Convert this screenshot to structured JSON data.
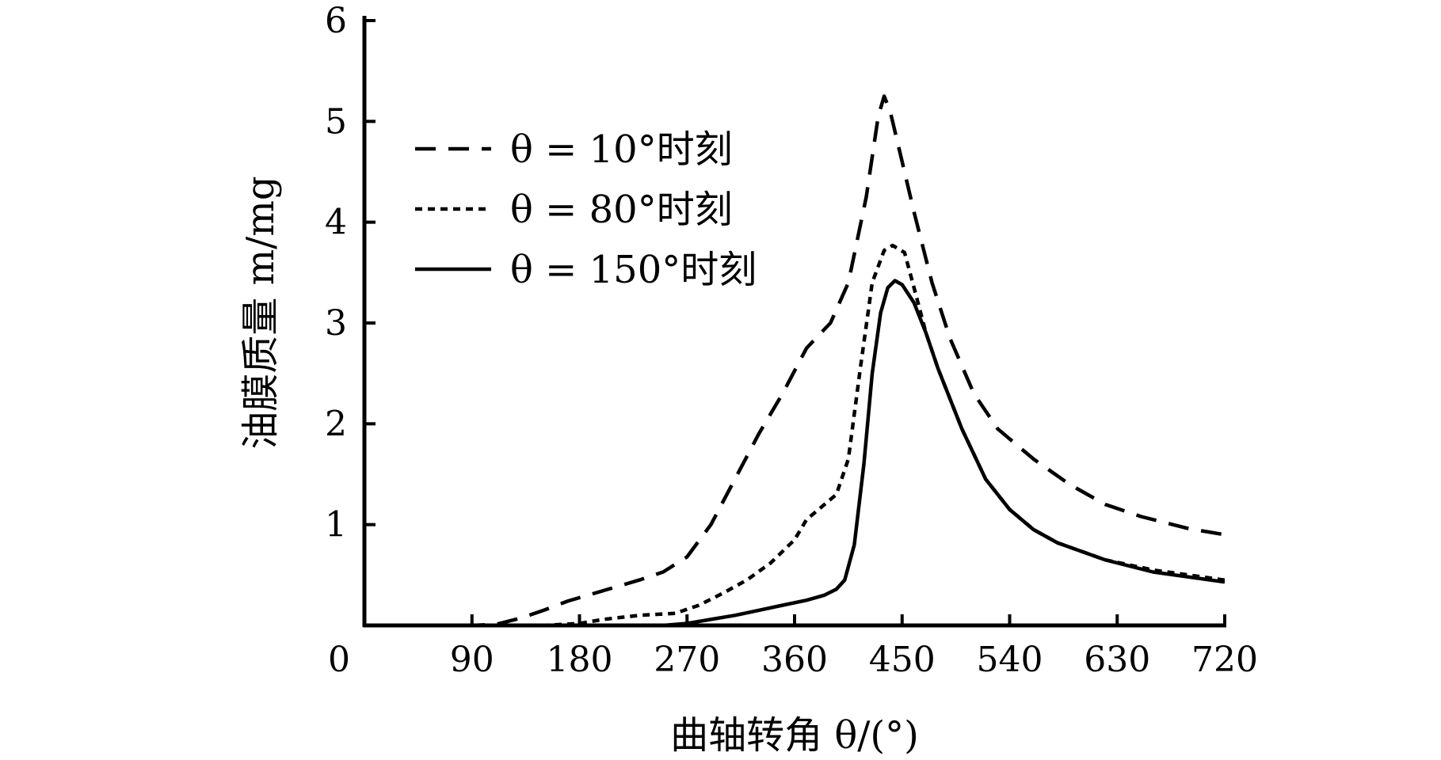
{
  "chart_data": {
    "type": "line",
    "xlabel": "曲轴转角 θ/(°)",
    "ylabel": "油膜质量 m/mg",
    "origin_label": "0",
    "xlim": [
      0,
      720
    ],
    "ylim": [
      0,
      6
    ],
    "x_ticks": [
      "90",
      "180",
      "270",
      "360",
      "450",
      "540",
      "630",
      "720"
    ],
    "y_ticks": [
      "1",
      "2",
      "3",
      "4",
      "5",
      "6"
    ],
    "grid": false,
    "legend_position": "top-left",
    "series": [
      {
        "name": "θ = 10°时刻",
        "style": "dashed",
        "color": "#000000",
        "x": [
          0,
          60,
          90,
          110,
          130,
          150,
          170,
          190,
          210,
          230,
          250,
          270,
          290,
          310,
          330,
          350,
          370,
          390,
          405,
          420,
          430,
          435,
          440,
          450,
          460,
          475,
          490,
          510,
          530,
          560,
          590,
          620,
          650,
          690,
          720
        ],
        "y": [
          0,
          0,
          0,
          0.01,
          0.07,
          0.15,
          0.24,
          0.31,
          0.38,
          0.45,
          0.53,
          0.68,
          1.0,
          1.45,
          1.9,
          2.3,
          2.75,
          3.0,
          3.4,
          4.25,
          5.05,
          5.25,
          5.1,
          4.6,
          4.1,
          3.4,
          2.85,
          2.3,
          1.95,
          1.65,
          1.4,
          1.2,
          1.08,
          0.96,
          0.9
        ]
      },
      {
        "name": "θ = 80°时刻",
        "style": "dotted",
        "color": "#000000",
        "x": [
          0,
          150,
          180,
          200,
          230,
          260,
          280,
          300,
          320,
          340,
          360,
          370,
          380,
          395,
          405,
          415,
          425,
          435,
          442,
          452,
          460,
          470,
          480,
          500,
          520,
          540,
          560,
          580,
          620,
          660,
          720
        ],
        "y": [
          0,
          0,
          0.02,
          0.06,
          0.1,
          0.12,
          0.2,
          0.32,
          0.45,
          0.62,
          0.85,
          1.05,
          1.15,
          1.3,
          1.65,
          2.55,
          3.4,
          3.72,
          3.77,
          3.7,
          3.35,
          2.9,
          2.55,
          1.95,
          1.45,
          1.15,
          0.95,
          0.82,
          0.65,
          0.55,
          0.45
        ]
      },
      {
        "name": "θ = 150°时刻",
        "style": "solid",
        "color": "#000000",
        "x": [
          0,
          200,
          250,
          270,
          290,
          310,
          330,
          350,
          370,
          385,
          395,
          402,
          410,
          418,
          425,
          432,
          438,
          444,
          450,
          460,
          470,
          480,
          500,
          520,
          540,
          560,
          580,
          620,
          660,
          720
        ],
        "y": [
          0,
          0,
          0,
          0.02,
          0.06,
          0.1,
          0.15,
          0.2,
          0.25,
          0.3,
          0.36,
          0.45,
          0.8,
          1.6,
          2.5,
          3.1,
          3.35,
          3.42,
          3.38,
          3.2,
          2.9,
          2.55,
          1.95,
          1.45,
          1.15,
          0.95,
          0.82,
          0.65,
          0.53,
          0.43
        ]
      }
    ]
  }
}
